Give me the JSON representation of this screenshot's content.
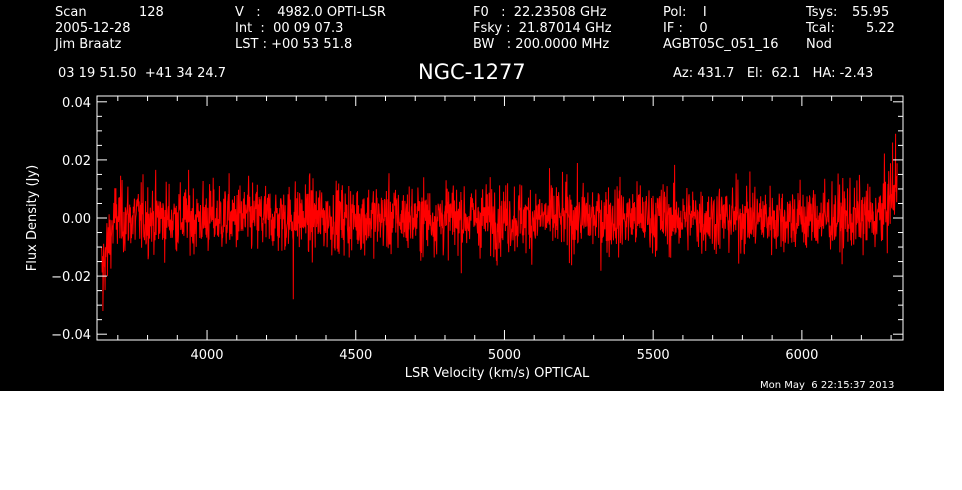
{
  "header": {
    "col1": {
      "scan_label": "Scan",
      "scan_value": "128",
      "date": "2005-12-28",
      "observer": "Jim Braatz"
    },
    "col2": {
      "v_line": "V   :    4982.0 OPTI-LSR",
      "int_line": "Int  :  00 09 07.3",
      "lst_line": "LST : +00 53 51.8"
    },
    "col3": {
      "f0_line": "F0   :  22.23508 GHz",
      "fsky_line": "Fsky :  21.87014 GHz",
      "bw_line": "BW   : 200.0000 MHz"
    },
    "col4": {
      "pol_line": "Pol:    I",
      "if_line": "IF :    0",
      "project": "AGBT05C_051_16"
    },
    "col5": {
      "tsys_label": "Tsys:",
      "tsys_value": "55.95",
      "tcal_label": "Tcal:",
      "tcal_value": "5.22",
      "mode": "Nod"
    },
    "coords": "03 19 51.50  +41 34 24.7",
    "source": "NGC-1277",
    "az_el_ha": "Az: 431.7   El:  62.1   HA: -2.43"
  },
  "timestamp": "Mon May  6 22:15:37 2013",
  "colors": {
    "background": "#000000",
    "axes": "#ffffff",
    "trace": "#ff0000"
  },
  "chart_data": {
    "type": "line",
    "title": "NGC-1277",
    "xlabel": "LSR Velocity (km/s) OPTICAL",
    "ylabel": "Flux Density (Jy)",
    "xlim": [
      3630,
      6340
    ],
    "ylim": [
      -0.042,
      0.042
    ],
    "x_ticks": [
      4000,
      4500,
      5000,
      5500,
      6000
    ],
    "x_tick_labels": [
      "4000",
      "4500",
      "5000",
      "5500",
      "6000"
    ],
    "y_ticks": [
      -0.04,
      -0.02,
      0.0,
      0.02,
      0.04
    ],
    "y_tick_labels": [
      "−0.04",
      "−0.02",
      "0.00",
      "0.02",
      "0.04"
    ],
    "grid": false,
    "series": [
      {
        "color": "#ff0000",
        "x_start": 3645,
        "x_end": 6320,
        "noise_rms": 0.006,
        "approx_min": -0.032,
        "approx_max": 0.029,
        "features": [
          {
            "x": 3650,
            "y": -0.032
          },
          {
            "x": 3665,
            "y": -0.02
          },
          {
            "x": 4290,
            "y": -0.028
          },
          {
            "x": 6305,
            "y": 0.026
          },
          {
            "x": 6315,
            "y": 0.029
          }
        ]
      }
    ]
  }
}
